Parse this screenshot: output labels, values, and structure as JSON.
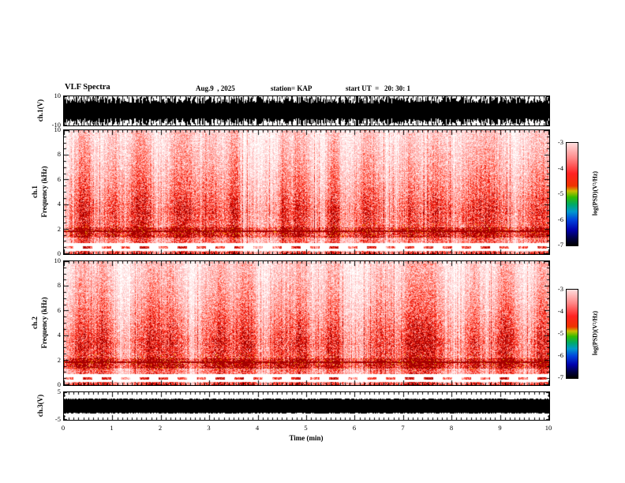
{
  "header": {
    "title": "VLF Spectra",
    "date": "Aug.9  , 2025",
    "station": "station= KAP",
    "start_ut": "start UT  =   20: 30: 1"
  },
  "xaxis": {
    "label": "Time (min)",
    "ticks": [
      0,
      1,
      2,
      3,
      4,
      5,
      6,
      7,
      8,
      9,
      10
    ],
    "minor_tick_interval_min": 0.1
  },
  "colorbar": {
    "label": "log(PSD)(V²/Hz)",
    "ticks": [
      "-3",
      "-4",
      "-5",
      "-6",
      "-7"
    ],
    "zlim": [
      -7,
      -3
    ],
    "stops": [
      "#ffdddd",
      "#ff8888",
      "#ff2222",
      "#ee3300",
      "#ccbb00",
      "#33bb00",
      "#00aa66",
      "#0099cc",
      "#0044dd",
      "#0000aa",
      "#000044",
      "#000000"
    ],
    "positions": [
      0,
      15,
      30,
      42,
      47,
      53,
      60,
      67,
      75,
      85,
      93,
      100
    ]
  },
  "chart_data": [
    {
      "type": "line",
      "name": "ch.1 waveform",
      "ylabel": "ch.1(V)",
      "ylim": [
        -10,
        10
      ],
      "visible_yticks": [
        10,
        -10
      ],
      "xlim": [
        0,
        10
      ],
      "description": "Broadband noise waveform filling nearly the full ±10 V scale continuously for the whole 10 min record",
      "render": {
        "seed": 11,
        "base": 0.5,
        "var": 0.45,
        "spike_prob": 0.12,
        "saturated": false
      }
    },
    {
      "type": "heatmap",
      "name": "ch.1 spectrogram",
      "ylabel_channel": "ch.1",
      "ylabel_axis": "Frequency (kHz)",
      "ylim": [
        0,
        10
      ],
      "yticks": [
        0,
        2,
        4,
        6,
        8,
        10
      ],
      "xlim": [
        0,
        10
      ],
      "zlabel": "log(PSD)(V²/Hz)",
      "zlim": [
        -7,
        -3
      ],
      "features": {
        "intense_band_khz": [
          1.4,
          2.2
        ],
        "dark_line_khz": 1.9,
        "quiet_band_khz": [
          0.3,
          0.95
        ],
        "dashed_line_khz": 0.6,
        "bottom_edge_line_khz": 0.1,
        "burst_clusters_per_10min": 15,
        "background": "white with dense red vertical impulsive sferic streaks, strongest 1.4-2.2 kHz, fading above ~3 kHz"
      },
      "render": {
        "seed": 23,
        "bursts": 15
      }
    },
    {
      "type": "heatmap",
      "name": "ch.2 spectrogram",
      "ylabel_channel": "ch.2",
      "ylabel_axis": "Frequency (kHz)",
      "ylim": [
        0,
        10
      ],
      "yticks": [
        0,
        2,
        4,
        6,
        8,
        10
      ],
      "xlim": [
        0,
        10
      ],
      "zlabel": "log(PSD)(V²/Hz)",
      "zlim": [
        -7,
        -3
      ],
      "features": {
        "intense_band_khz": [
          1.4,
          2.2
        ],
        "dark_line_khz": 1.9,
        "quiet_band_khz": [
          0.3,
          0.95
        ],
        "dashed_line_khz": 0.6,
        "bottom_edge_line_khz": 0.1,
        "burst_clusters_per_10min": 15,
        "background": "white with dense red vertical impulsive sferic streaks, strongest 1.4-2.2 kHz, fading above ~3 kHz"
      },
      "render": {
        "seed": 57,
        "bursts": 15
      }
    },
    {
      "type": "line",
      "name": "ch.3 waveform",
      "ylabel": "ch.3(V)",
      "ylim": [
        -5,
        5
      ],
      "visible_yticks": [
        5,
        -5
      ],
      "xlim": [
        0,
        10
      ],
      "description": "Saturated constant-amplitude solid black band (~±2.6 V) for the entire record",
      "render": {
        "seed": 91,
        "base": 0.52,
        "var": 0.06,
        "spike_prob": 0,
        "saturated": true
      }
    }
  ]
}
